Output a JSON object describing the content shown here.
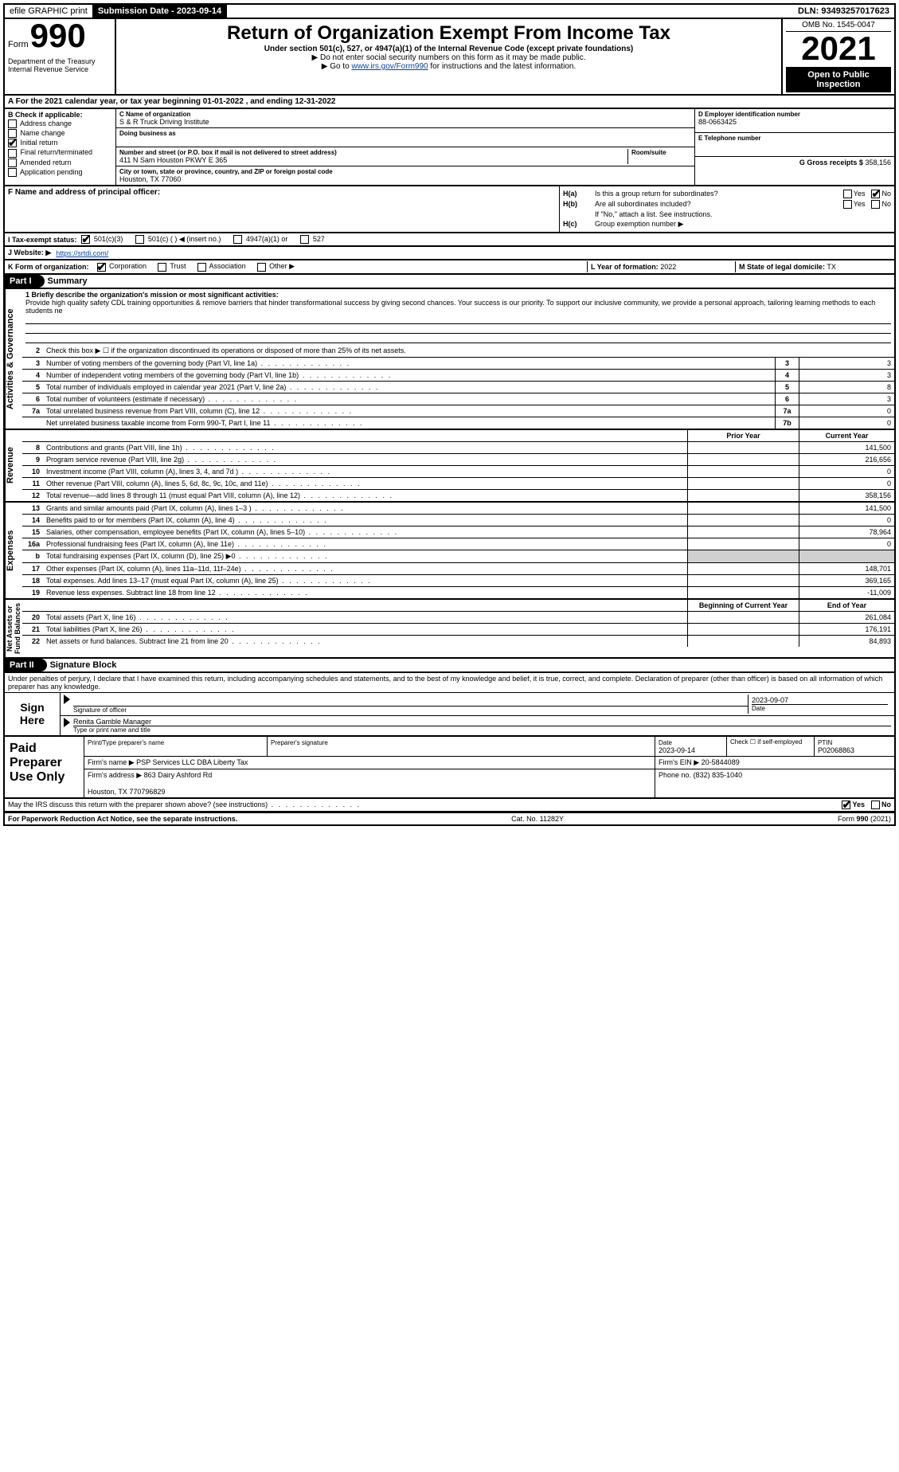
{
  "topbar": {
    "efile_label": "efile GRAPHIC print",
    "submission_date_label": "Submission Date - 2023-09-14",
    "dln": "DLN: 93493257017623"
  },
  "header": {
    "form_prefix": "Form",
    "form_number": "990",
    "title": "Return of Organization Exempt From Income Tax",
    "subtitle": "Under section 501(c), 527, or 4947(a)(1) of the Internal Revenue Code (except private foundations)",
    "note1": "▶ Do not enter social security numbers on this form as it may be made public.",
    "note2_prefix": "▶ Go to ",
    "note2_link": "www.irs.gov/Form990",
    "note2_suffix": " for instructions and the latest information.",
    "dept": "Department of the Treasury\nInternal Revenue Service",
    "omb": "OMB No. 1545-0047",
    "year": "2021",
    "open": "Open to Public Inspection"
  },
  "line_a": "A For the 2021 calendar year, or tax year beginning 01-01-2022    , and ending 12-31-2022",
  "box_b": {
    "title": "B Check if applicable:",
    "opts": [
      "Address change",
      "Name change",
      "Initial return",
      "Final return/terminated",
      "Amended return",
      "Application pending"
    ],
    "checked_idx": 2
  },
  "box_c": {
    "name_lbl": "C Name of organization",
    "name": "S & R Truck Driving Institute",
    "dba_lbl": "Doing business as",
    "addr_lbl": "Number and street (or P.O. box if mail is not delivered to street address)",
    "room_lbl": "Room/suite",
    "addr": "411 N Sam Houston PKWY E 365",
    "city_lbl": "City or town, state or province, country, and ZIP or foreign postal code",
    "city": "Houston, TX  77060"
  },
  "box_d": {
    "lbl": "D Employer identification number",
    "val": "88-0663425"
  },
  "box_e": {
    "lbl": "E Telephone number",
    "val": ""
  },
  "box_g": {
    "lbl": "G Gross receipts $",
    "val": "358,156"
  },
  "box_f": {
    "lbl": "F  Name and address of principal officer:",
    "val": ""
  },
  "box_h": {
    "a": "Is this a group return for subordinates?",
    "a_yes": false,
    "a_no": true,
    "b": "Are all subordinates included?",
    "b_note": "If \"No,\" attach a list. See instructions.",
    "c": "Group exemption number ▶"
  },
  "row_i": {
    "lbl": "I  Tax-exempt status:",
    "opts": [
      "501(c)(3)",
      "501(c) (  ) ◀ (insert no.)",
      "4947(a)(1) or",
      "527"
    ],
    "checked_idx": 0
  },
  "row_j": {
    "lbl": "J  Website: ▶",
    "val": "https://srtdi.com/"
  },
  "row_k": {
    "lbl": "K Form of organization:",
    "opts": [
      "Corporation",
      "Trust",
      "Association",
      "Other ▶"
    ],
    "checked_idx": 0
  },
  "row_l": {
    "lbl": "L Year of formation:",
    "val": "2022"
  },
  "row_m": {
    "lbl": "M State of legal domicile:",
    "val": "TX"
  },
  "parts": {
    "p1": "Part I",
    "p1_title": "Summary",
    "p2": "Part II",
    "p2_title": "Signature Block"
  },
  "summary": {
    "mission_lbl": "1  Briefly describe the organization's mission or most significant activities:",
    "mission": "Provide high quality safety CDL training opportunities & remove barriers that hinder transformational success by giving second chances. Your success is our priority. To support our inclusive community, we provide a personal approach, tailoring learning methods to each students ne",
    "line2": "Check this box ▶ ☐  if the organization discontinued its operations or disposed of more than 25% of its net assets.",
    "hdr_prior": "Prior Year",
    "hdr_curr": "Current Year",
    "hdr_begin": "Beginning of Current Year",
    "hdr_end": "End of Year",
    "gov": [
      {
        "n": "3",
        "t": "Number of voting members of the governing body (Part VI, line 1a)",
        "c": "3",
        "v": "3"
      },
      {
        "n": "4",
        "t": "Number of independent voting members of the governing body (Part VI, line 1b)",
        "c": "4",
        "v": "3"
      },
      {
        "n": "5",
        "t": "Total number of individuals employed in calendar year 2021 (Part V, line 2a)",
        "c": "5",
        "v": "8"
      },
      {
        "n": "6",
        "t": "Total number of volunteers (estimate if necessary)",
        "c": "6",
        "v": "3"
      },
      {
        "n": "7a",
        "t": "Total unrelated business revenue from Part VIII, column (C), line 12",
        "c": "7a",
        "v": "0"
      },
      {
        "n": "",
        "t": "Net unrelated business taxable income from Form 990-T, Part I, line 11",
        "c": "7b",
        "v": "0"
      }
    ],
    "rev": [
      {
        "n": "8",
        "t": "Contributions and grants (Part VIII, line 1h)",
        "p": "",
        "v": "141,500"
      },
      {
        "n": "9",
        "t": "Program service revenue (Part VIII, line 2g)",
        "p": "",
        "v": "216,656"
      },
      {
        "n": "10",
        "t": "Investment income (Part VIII, column (A), lines 3, 4, and 7d )",
        "p": "",
        "v": "0"
      },
      {
        "n": "11",
        "t": "Other revenue (Part VIII, column (A), lines 5, 6d, 8c, 9c, 10c, and 11e)",
        "p": "",
        "v": "0"
      },
      {
        "n": "12",
        "t": "Total revenue—add lines 8 through 11 (must equal Part VIII, column (A), line 12)",
        "p": "",
        "v": "358,156"
      }
    ],
    "exp": [
      {
        "n": "13",
        "t": "Grants and similar amounts paid (Part IX, column (A), lines 1–3 )",
        "p": "",
        "v": "141,500"
      },
      {
        "n": "14",
        "t": "Benefits paid to or for members (Part IX, column (A), line 4)",
        "p": "",
        "v": "0"
      },
      {
        "n": "15",
        "t": "Salaries, other compensation, employee benefits (Part IX, column (A), lines 5–10)",
        "p": "",
        "v": "78,964"
      },
      {
        "n": "16a",
        "t": "Professional fundraising fees (Part IX, column (A), line 11e)",
        "p": "",
        "v": "0"
      },
      {
        "n": "b",
        "t": "Total fundraising expenses (Part IX, column (D), line 25) ▶0",
        "p": "gray",
        "v": "gray"
      },
      {
        "n": "17",
        "t": "Other expenses (Part IX, column (A), lines 11a–11d, 11f–24e)",
        "p": "",
        "v": "148,701"
      },
      {
        "n": "18",
        "t": "Total expenses. Add lines 13–17 (must equal Part IX, column (A), line 25)",
        "p": "",
        "v": "369,165"
      },
      {
        "n": "19",
        "t": "Revenue less expenses. Subtract line 18 from line 12",
        "p": "",
        "v": "-11,009"
      }
    ],
    "net": [
      {
        "n": "20",
        "t": "Total assets (Part X, line 16)",
        "p": "",
        "v": "261,084"
      },
      {
        "n": "21",
        "t": "Total liabilities (Part X, line 26)",
        "p": "",
        "v": "176,191"
      },
      {
        "n": "22",
        "t": "Net assets or fund balances. Subtract line 21 from line 20",
        "p": "",
        "v": "84,893"
      }
    ],
    "vtabs": {
      "gov": "Activities & Governance",
      "rev": "Revenue",
      "exp": "Expenses",
      "net": "Net Assets or\nFund Balances"
    }
  },
  "sig": {
    "penalties": "Under penalties of perjury, I declare that I have examined this return, including accompanying schedules and statements, and to the best of my knowledge and belief, it is true, correct, and complete. Declaration of preparer (other than officer) is based on all information of which preparer has any knowledge.",
    "sign_here": "Sign Here",
    "sig_officer_lbl": "Signature of officer",
    "date": "2023-09-07",
    "date_lbl": "Date",
    "name": "Renita Gamble  Manager",
    "name_lbl": "Type or print name and title"
  },
  "prep": {
    "title": "Paid Preparer Use Only",
    "name_lbl": "Print/Type preparer's name",
    "sig_lbl": "Preparer's signature",
    "date_lbl": "Date",
    "date": "2023-09-14",
    "self_lbl": "Check ☐ if self-employed",
    "ptin_lbl": "PTIN",
    "ptin": "P02068863",
    "firm_name_lbl": "Firm's name    ▶",
    "firm_name": "PSP Services LLC DBA Liberty Tax",
    "firm_ein_lbl": "Firm's EIN ▶",
    "firm_ein": "20-5844089",
    "firm_addr_lbl": "Firm's address ▶",
    "firm_addr": "863 Dairy Ashford Rd\n\nHouston, TX  770796829",
    "phone_lbl": "Phone no.",
    "phone": "(832) 835-1040"
  },
  "discuss": {
    "txt": "May the IRS discuss this return with the preparer shown above? (see instructions)",
    "yes": true,
    "no": false
  },
  "footer": {
    "pra": "For Paperwork Reduction Act Notice, see the separate instructions.",
    "cat": "Cat. No. 11282Y",
    "form": "Form 990 (2021)"
  }
}
